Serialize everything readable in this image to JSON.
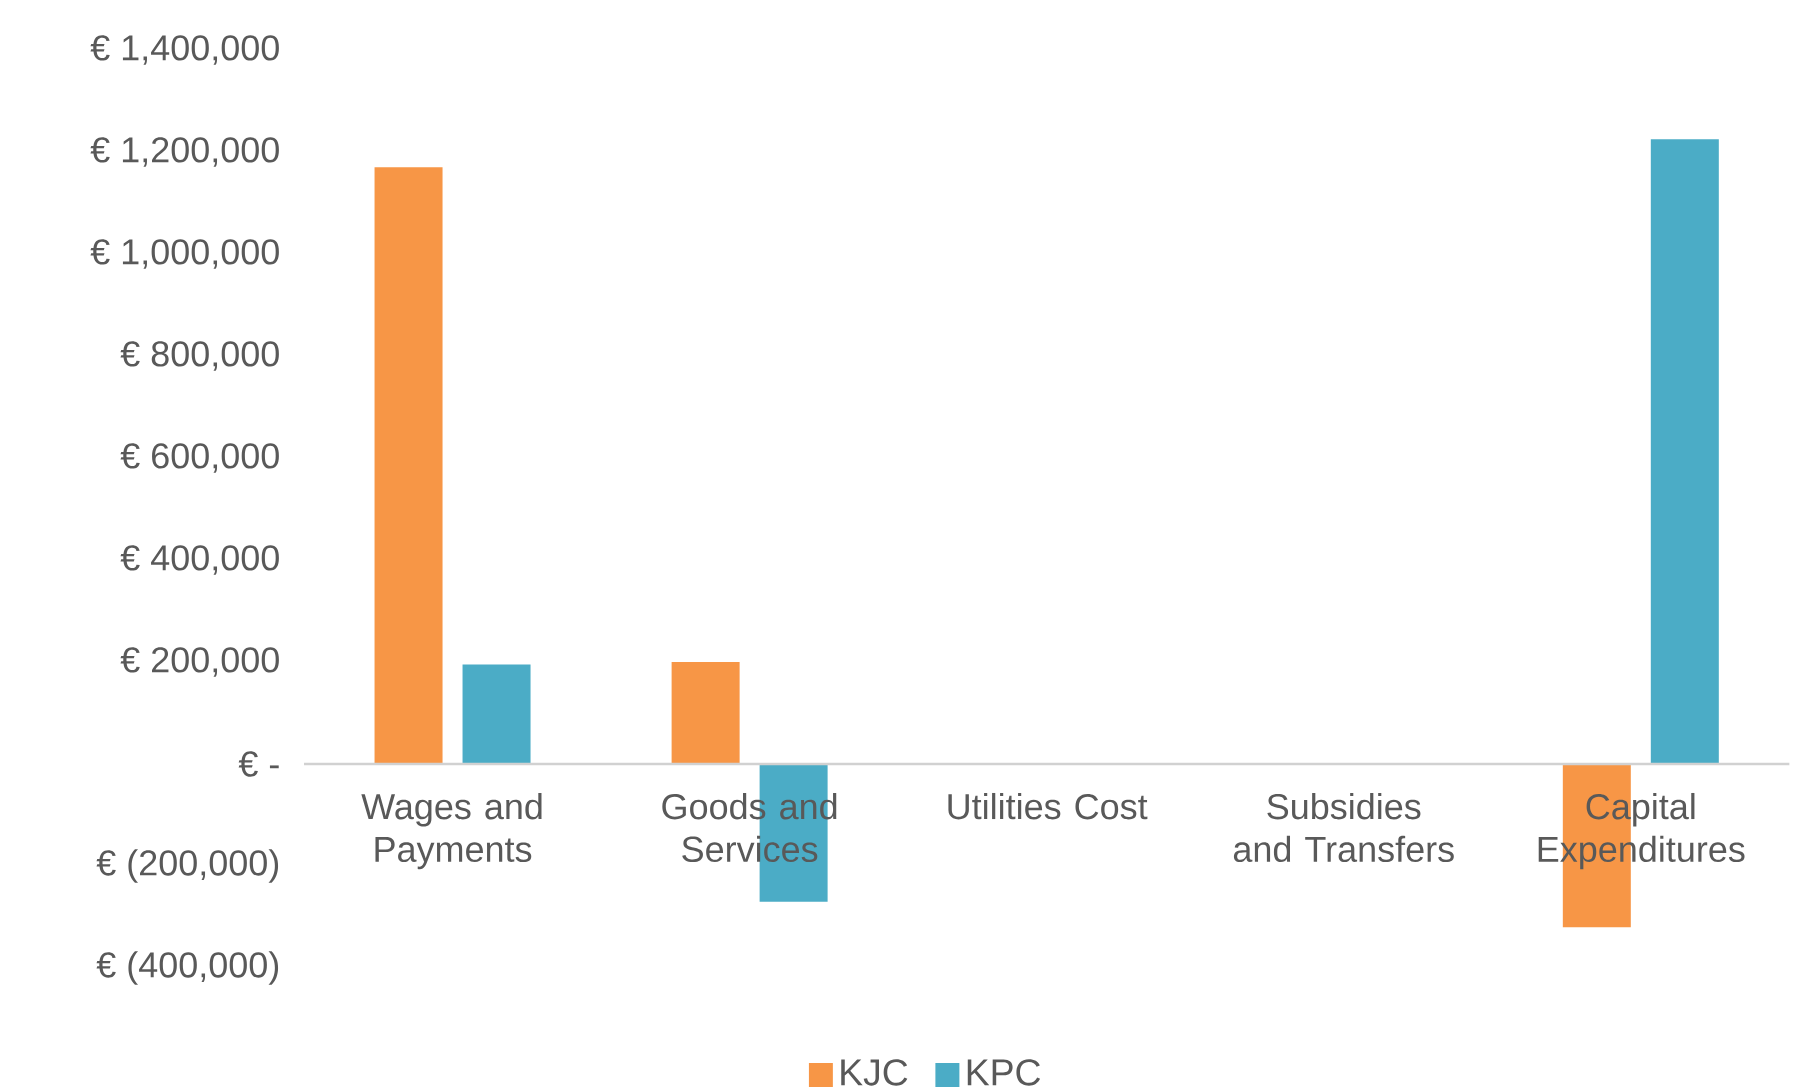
{
  "chart_data": {
    "type": "bar",
    "categories": [
      "Wages and Payments",
      "Goods and Services",
      "Utilities Cost",
      "Subsidies and Transfers",
      "Capital Expenditures"
    ],
    "series": [
      {
        "name": "KJC",
        "color": "#f79646",
        "values": [
          1170000,
          200000,
          0,
          0,
          -320000
        ]
      },
      {
        "name": "KPC",
        "color": "#4bacc6",
        "values": [
          195000,
          -270000,
          0,
          0,
          1225000
        ]
      }
    ],
    "ylim": [
      -400000,
      1400000
    ],
    "yticks": [
      {
        "value": -400000,
        "label": "€ (400,000)"
      },
      {
        "value": -200000,
        "label": "€ (200,000)"
      },
      {
        "value": 0,
        "label": "€ -"
      },
      {
        "value": 200000,
        "label": "€ 200,000"
      },
      {
        "value": 400000,
        "label": "€ 400,000"
      },
      {
        "value": 600000,
        "label": "€ 600,000"
      },
      {
        "value": 800000,
        "label": "€ 800,000"
      },
      {
        "value": 1000000,
        "label": "€ 1,000,000"
      },
      {
        "value": 1200000,
        "label": "€ 1,200,000"
      },
      {
        "value": 1400000,
        "label": "€ 1,400,000"
      }
    ],
    "grid": false,
    "legend": "bottom"
  }
}
